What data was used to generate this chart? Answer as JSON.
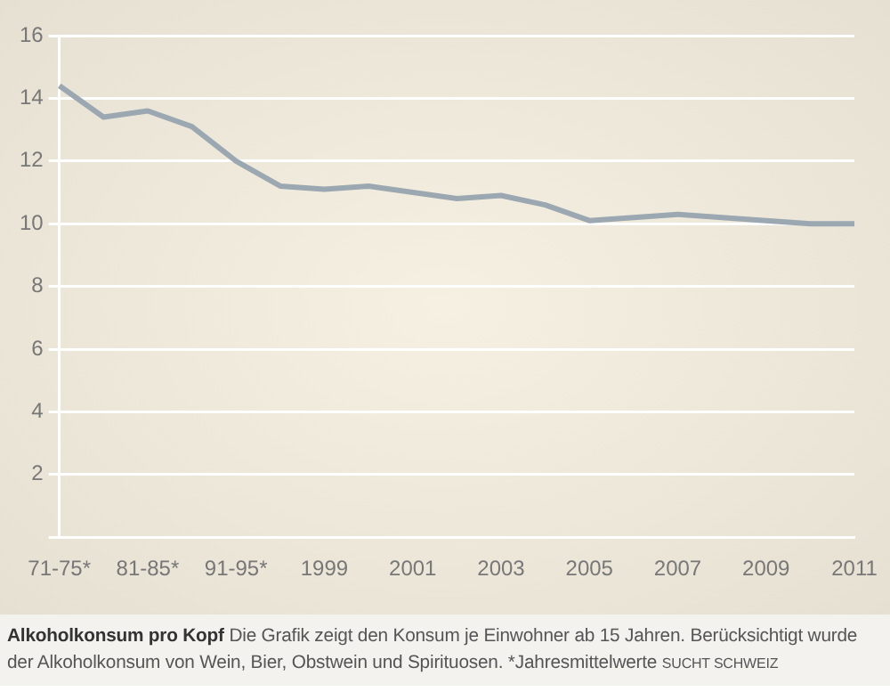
{
  "chart_data": {
    "type": "line",
    "title": "Alkoholkonsum pro Kopf",
    "annotations": [
      "Die Grafik zeigt den Konsum je Einwohner ab 15 Jahren. Berücksichtigt wurde der Alkoholkonsum von Wein, Bier, Obstwein und Spirituosen. *Jahresmittelwerte",
      "SUCHT SCHWEIZ"
    ],
    "categories": [
      "71-75*",
      null,
      "81-85*",
      null,
      "91-95*",
      null,
      "1999",
      null,
      "2001",
      null,
      "2003",
      null,
      "2005",
      null,
      "2007",
      null,
      "2009",
      null,
      "2011"
    ],
    "series": [
      {
        "color": "#9ba8b2",
        "values": [
          14.4,
          13.4,
          13.6,
          13.1,
          12.0,
          11.2,
          11.1,
          11.2,
          11.0,
          10.8,
          10.9,
          10.6,
          10.1,
          10.2,
          10.3,
          10.2,
          10.1,
          10.0,
          10.0
        ]
      }
    ],
    "ylim": [
      0,
      16
    ],
    "yticks": [
      {
        "value": 0,
        "label": null
      },
      2,
      4,
      6,
      8,
      10,
      12,
      14,
      16
    ],
    "grid": "y",
    "legend": false,
    "marker": "none",
    "line_style": "solid"
  }
}
